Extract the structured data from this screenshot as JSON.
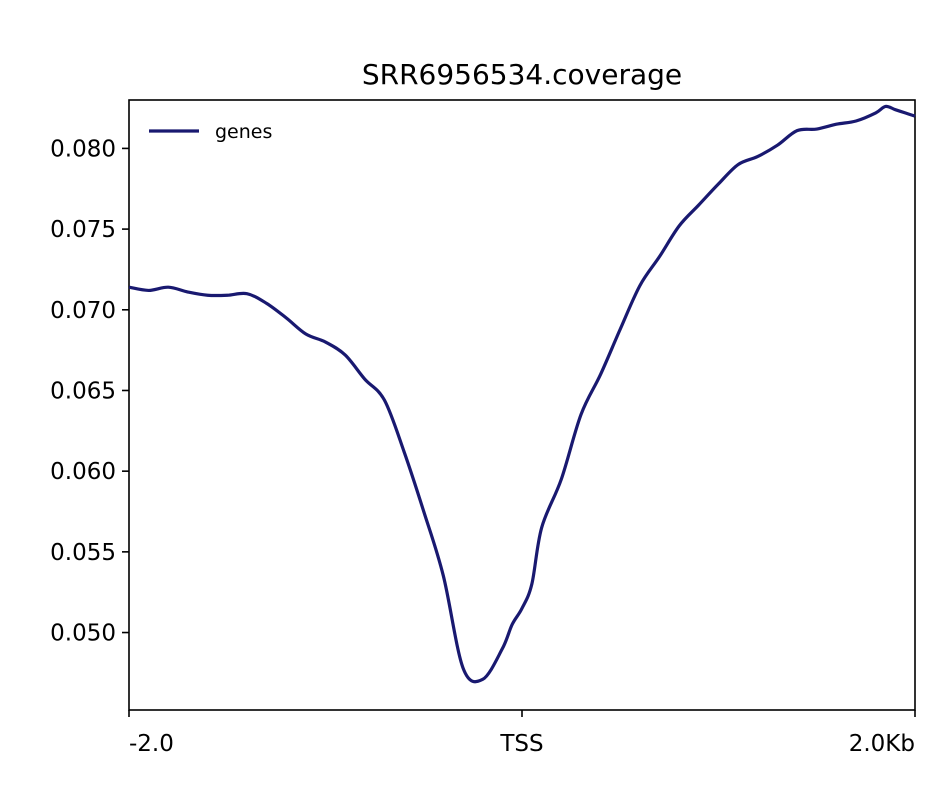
{
  "chart_data": {
    "type": "line",
    "title": "SRR6956534.coverage",
    "xlabel": "",
    "ylabel": "",
    "x_tick_labels": [
      "-2.0",
      "TSS",
      "2.0Kb"
    ],
    "y_tick_labels": [
      "0.050",
      "0.055",
      "0.060",
      "0.065",
      "0.070",
      "0.075",
      "0.080"
    ],
    "y_ticks": [
      0.05,
      0.055,
      0.06,
      0.065,
      0.07,
      0.075,
      0.08
    ],
    "xlim": [
      -2.0,
      2.0
    ],
    "ylim": [
      0.0452,
      0.083
    ],
    "grid": false,
    "legend_position": "top-left",
    "series": [
      {
        "name": "genes",
        "color": "#191970",
        "x": [
          -2.0,
          -1.9,
          -1.8,
          -1.7,
          -1.6,
          -1.5,
          -1.4,
          -1.3,
          -1.2,
          -1.1,
          -1.0,
          -0.9,
          -0.8,
          -0.7,
          -0.6,
          -0.5,
          -0.4,
          -0.3,
          -0.2,
          -0.1,
          -0.05,
          0.0,
          0.05,
          0.1,
          0.2,
          0.3,
          0.4,
          0.5,
          0.6,
          0.7,
          0.8,
          0.9,
          1.0,
          1.1,
          1.2,
          1.3,
          1.4,
          1.5,
          1.6,
          1.7,
          1.8,
          1.85,
          1.9,
          1.95,
          2.0
        ],
        "y": [
          0.0714,
          0.0712,
          0.0714,
          0.0711,
          0.0709,
          0.0709,
          0.071,
          0.0704,
          0.0695,
          0.0685,
          0.068,
          0.0672,
          0.0657,
          0.0644,
          0.0612,
          0.0575,
          0.0535,
          0.0478,
          0.0471,
          0.049,
          0.0505,
          0.0515,
          0.053,
          0.0565,
          0.0595,
          0.0635,
          0.066,
          0.0688,
          0.0715,
          0.0733,
          0.0752,
          0.0765,
          0.0778,
          0.079,
          0.0795,
          0.0802,
          0.0811,
          0.0812,
          0.0815,
          0.0817,
          0.0822,
          0.0826,
          0.0824,
          0.0822,
          0.082
        ]
      }
    ]
  }
}
